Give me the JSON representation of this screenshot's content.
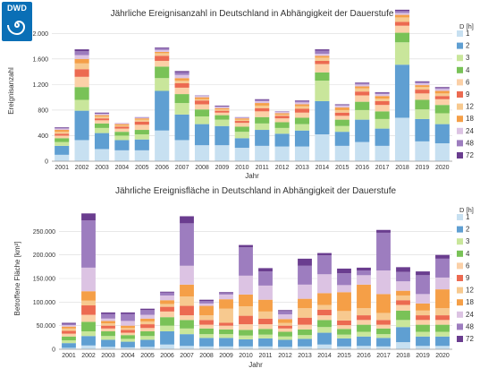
{
  "logo": {
    "text": "DWD",
    "icon": "dwd-spiral-icon"
  },
  "series_names": [
    "1",
    "2",
    "3",
    "4",
    "6",
    "9",
    "12",
    "18",
    "24",
    "48",
    "72"
  ],
  "colors": [
    "#c7e0f1",
    "#5f9fd2",
    "#c9e69b",
    "#79c257",
    "#fbd0a7",
    "#ec6a51",
    "#f7c98f",
    "#f59f47",
    "#dcc3e3",
    "#9d7dbf",
    "#6a3d8f"
  ],
  "legend_title": "D [h]",
  "chart_data": [
    {
      "type": "bar",
      "stacked": true,
      "title": "Jährliche Ereignisanzahl in Deutschland in Abhängigkeit der Dauerstufe",
      "xlabel": "Jahr",
      "ylabel": "Ereignisanzahl",
      "ylim": [
        0,
        2200
      ],
      "yticks": [
        0,
        400,
        800,
        1200,
        1600,
        2000
      ],
      "ytick_labels": [
        "0",
        "400",
        "800",
        "1.200",
        "1.600",
        "2.000"
      ],
      "grid": true,
      "legend": "right",
      "categories": [
        "2001",
        "2002",
        "2003",
        "2004",
        "2005",
        "2006",
        "2007",
        "2008",
        "2009",
        "2010",
        "2011",
        "2012",
        "2013",
        "2014",
        "2015",
        "2016",
        "2017",
        "2018",
        "2019",
        "2020"
      ],
      "series": [
        {
          "name": "1",
          "values": [
            100,
            330,
            190,
            170,
            170,
            480,
            330,
            250,
            250,
            210,
            240,
            230,
            230,
            420,
            240,
            300,
            240,
            680,
            310,
            280
          ]
        },
        {
          "name": "2",
          "values": [
            140,
            460,
            250,
            160,
            170,
            620,
            400,
            330,
            300,
            150,
            250,
            200,
            250,
            520,
            220,
            350,
            270,
            830,
            350,
            300
          ]
        },
        {
          "name": "3",
          "values": [
            60,
            170,
            80,
            70,
            80,
            200,
            180,
            120,
            100,
            100,
            100,
            90,
            100,
            320,
            90,
            150,
            150,
            350,
            150,
            170
          ]
        },
        {
          "name": "4",
          "values": [
            60,
            200,
            70,
            60,
            70,
            180,
            140,
            110,
            70,
            80,
            100,
            90,
            100,
            130,
            100,
            130,
            120,
            150,
            150,
            130
          ]
        },
        {
          "name": "6",
          "values": [
            40,
            160,
            50,
            50,
            80,
            90,
            100,
            80,
            40,
            60,
            90,
            60,
            80,
            130,
            60,
            100,
            100,
            110,
            100,
            90
          ]
        },
        {
          "name": "9",
          "values": [
            30,
            120,
            30,
            30,
            50,
            80,
            70,
            60,
            30,
            30,
            50,
            40,
            60,
            50,
            50,
            60,
            60,
            60,
            60,
            50
          ]
        },
        {
          "name": "12",
          "values": [
            30,
            90,
            30,
            20,
            30,
            40,
            40,
            20,
            20,
            20,
            40,
            20,
            40,
            50,
            40,
            50,
            40,
            70,
            40,
            40
          ]
        },
        {
          "name": "18",
          "values": [
            30,
            70,
            20,
            20,
            20,
            20,
            40,
            30,
            20,
            20,
            40,
            20,
            30,
            30,
            40,
            30,
            40,
            40,
            30,
            40
          ]
        },
        {
          "name": "24",
          "values": [
            20,
            60,
            20,
            20,
            10,
            30,
            50,
            20,
            20,
            10,
            30,
            20,
            30,
            30,
            30,
            30,
            30,
            30,
            30,
            30
          ]
        },
        {
          "name": "48",
          "values": [
            10,
            60,
            10,
            0,
            10,
            30,
            40,
            10,
            10,
            10,
            20,
            10,
            20,
            50,
            10,
            20,
            20,
            30,
            20,
            20
          ]
        },
        {
          "name": "72",
          "values": [
            10,
            30,
            10,
            0,
            0,
            10,
            20,
            0,
            10,
            0,
            10,
            0,
            10,
            20,
            10,
            10,
            10,
            20,
            10,
            10
          ]
        }
      ]
    },
    {
      "type": "bar",
      "stacked": true,
      "title": "Jährliche Ereignisfläche in Deutschland in Abhängigkeit der Dauerstufe",
      "xlabel": "Jahr",
      "ylabel": "Betroffene Fläche [km²]",
      "ylim": [
        0,
        300000
      ],
      "yticks": [
        0,
        50000,
        100000,
        150000,
        200000,
        250000
      ],
      "ytick_labels": [
        "0",
        "50.000",
        "100.000",
        "150.000",
        "200.000",
        "250.000"
      ],
      "grid": true,
      "legend": "right",
      "categories": [
        "2001",
        "2002",
        "2003",
        "2004",
        "2005",
        "2006",
        "2007",
        "2008",
        "2009",
        "2010",
        "2011",
        "2012",
        "2013",
        "2014",
        "2015",
        "2016",
        "2017",
        "2018",
        "2019",
        "2020"
      ],
      "series": [
        {
          "name": "1",
          "values": [
            3000,
            8000,
            5000,
            4000,
            5000,
            10000,
            7000,
            6000,
            6000,
            6000,
            6000,
            5000,
            6000,
            10000,
            6000,
            7000,
            6000,
            15000,
            7000,
            7000
          ]
        },
        {
          "name": "2",
          "values": [
            10000,
            20000,
            15000,
            12000,
            15000,
            28000,
            25000,
            18000,
            18000,
            15000,
            17000,
            15000,
            16000,
            25000,
            17000,
            20000,
            18000,
            32000,
            20000,
            20000
          ]
        },
        {
          "name": "3",
          "values": [
            6000,
            10000,
            8000,
            6000,
            8000,
            12000,
            12000,
            8000,
            8000,
            8000,
            8000,
            7000,
            8000,
            12000,
            8000,
            10000,
            8000,
            15000,
            10000,
            10000
          ]
        },
        {
          "name": "4",
          "values": [
            8000,
            20000,
            10000,
            8000,
            10000,
            18000,
            18000,
            12000,
            10000,
            12000,
            12000,
            10000,
            12000,
            15000,
            12000,
            15000,
            12000,
            20000,
            15000,
            15000
          ]
        },
        {
          "name": "6",
          "values": [
            6000,
            15000,
            6000,
            5000,
            7000,
            12000,
            10000,
            8000,
            8000,
            12000,
            10000,
            7000,
            10000,
            10000,
            8000,
            10000,
            8000,
            12000,
            10000,
            10000
          ]
        },
        {
          "name": "9",
          "values": [
            6000,
            20000,
            6000,
            6000,
            8000,
            10000,
            20000,
            10000,
            6000,
            18000,
            12000,
            6000,
            15000,
            12000,
            10000,
            10000,
            10000,
            10000,
            10000,
            10000
          ]
        },
        {
          "name": "12",
          "values": [
            5000,
            10000,
            5000,
            4000,
            6000,
            6000,
            20000,
            10000,
            30000,
            20000,
            15000,
            6000,
            20000,
            10000,
            20000,
            15000,
            15000,
            10000,
            10000,
            15000
          ]
        },
        {
          "name": "18",
          "values": [
            4000,
            20000,
            5000,
            5000,
            6000,
            8000,
            25000,
            20000,
            20000,
            25000,
            25000,
            8000,
            20000,
            25000,
            40000,
            50000,
            40000,
            10000,
            15000,
            40000
          ]
        },
        {
          "name": "24",
          "values": [
            3000,
            50000,
            5000,
            10000,
            8000,
            10000,
            40000,
            5000,
            10000,
            40000,
            30000,
            10000,
            30000,
            40000,
            15000,
            20000,
            50000,
            20000,
            20000,
            25000
          ]
        },
        {
          "name": "48",
          "values": [
            3000,
            100000,
            10000,
            15000,
            10000,
            6000,
            90000,
            5000,
            3000,
            60000,
            30000,
            7000,
            40000,
            40000,
            25000,
            10000,
            80000,
            20000,
            40000,
            40000
          ]
        },
        {
          "name": "72",
          "values": [
            2000,
            15000,
            3000,
            3000,
            3000,
            2000,
            15000,
            3000,
            2000,
            5000,
            7000,
            2000,
            15000,
            5000,
            10000,
            6000,
            6000,
            10000,
            8000,
            8000
          ]
        }
      ]
    }
  ]
}
